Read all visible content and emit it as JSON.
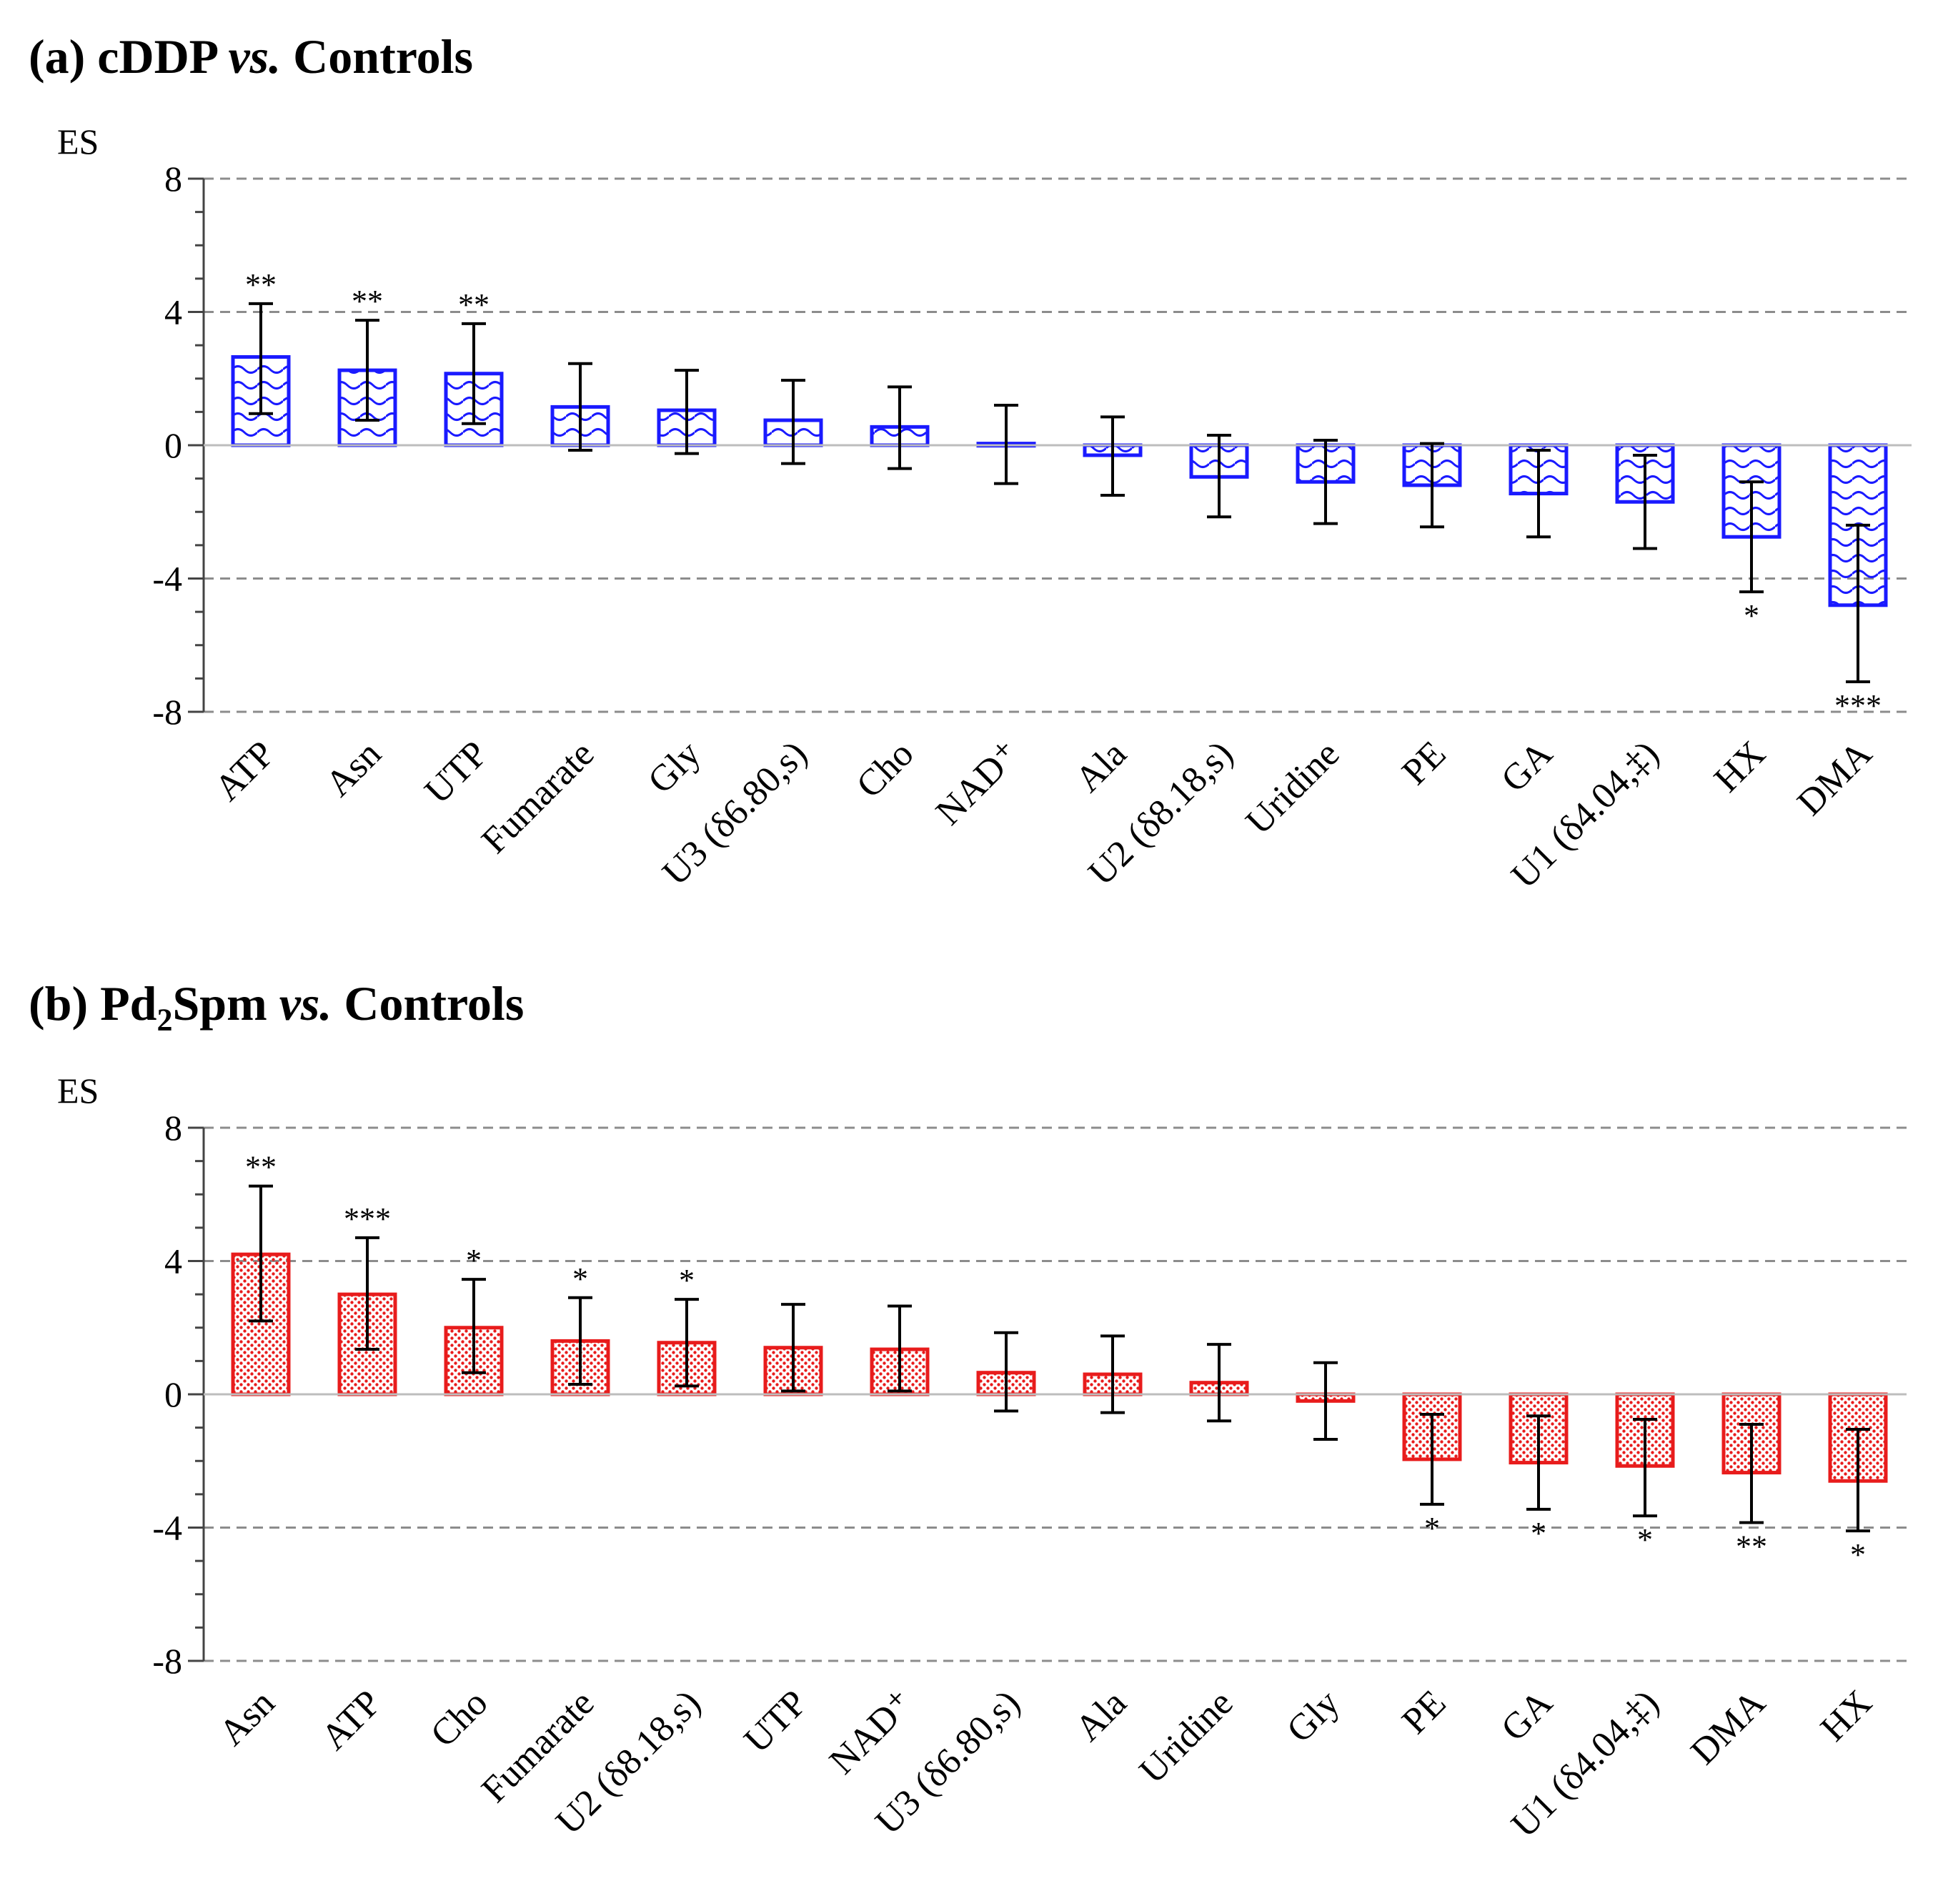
{
  "chart_data": [
    {
      "panel": "a",
      "title_prefix": "(a) cDDP ",
      "title_italic": "vs.",
      "title_suffix": " Controls",
      "type": "bar",
      "ylabel": "ES",
      "ylim": [
        -8,
        8
      ],
      "yticks": [
        8,
        4,
        0,
        -4,
        -8
      ],
      "grid": true,
      "color": "#1a1aff",
      "pattern": "wave",
      "categories": [
        "ATP",
        "Asn",
        "UTP",
        "Fumarate",
        "Gly",
        "U3 (δ6.80,s)",
        "Cho",
        "NAD⁺",
        "Ala",
        "U2 (δ8.18,s)",
        "Uridine",
        "PE",
        "GA",
        "U1 (δ4.04,‡)",
        "HX",
        "DMA"
      ],
      "values": [
        2.65,
        2.25,
        2.15,
        1.15,
        1.05,
        0.75,
        0.55,
        0.05,
        -0.3,
        -0.95,
        -1.1,
        -1.2,
        -1.45,
        -1.7,
        -2.75,
        -4.8
      ],
      "error_low": [
        0.95,
        0.75,
        0.65,
        -0.15,
        -0.25,
        -0.55,
        -0.7,
        -1.15,
        -1.5,
        -2.15,
        -2.35,
        -2.45,
        -2.75,
        -3.1,
        -4.4,
        -7.1
      ],
      "error_high": [
        4.25,
        3.75,
        3.65,
        2.45,
        2.25,
        1.95,
        1.75,
        1.2,
        0.85,
        0.3,
        0.15,
        0.05,
        -0.15,
        -0.3,
        -1.1,
        -2.4
      ],
      "significance": [
        "**",
        "**",
        "**",
        "",
        "",
        "",
        "",
        "",
        "",
        "",
        "",
        "",
        "",
        "",
        "*",
        "***"
      ]
    },
    {
      "panel": "b",
      "title_prefix": "(b) Pd",
      "title_sub": "2",
      "title_mid": "Spm ",
      "title_italic": "vs.",
      "title_suffix": " Controls",
      "type": "bar",
      "ylabel": "ES",
      "ylim": [
        -8,
        8
      ],
      "yticks": [
        8,
        4,
        0,
        -4,
        -8
      ],
      "grid": true,
      "color": "#e81c1c",
      "pattern": "dots",
      "categories": [
        "Asn",
        "ATP",
        "Cho",
        "Fumarate",
        "U2 (δ8.18,s)",
        "UTP",
        "NAD⁺",
        "U3 (δ6.80,s)",
        "Ala",
        "Uridine",
        "Gly",
        "PE",
        "GA",
        "U1 (δ4.04,‡)",
        "DMA",
        "HX"
      ],
      "values": [
        4.2,
        3.0,
        2.0,
        1.6,
        1.55,
        1.4,
        1.35,
        0.65,
        0.6,
        0.35,
        -0.2,
        -1.95,
        -2.05,
        -2.15,
        -2.35,
        -2.6
      ],
      "error_low": [
        2.2,
        1.35,
        0.65,
        0.3,
        0.25,
        0.1,
        0.1,
        -0.5,
        -0.55,
        -0.8,
        -1.35,
        -3.3,
        -3.45,
        -3.65,
        -3.85,
        -4.1
      ],
      "error_high": [
        6.25,
        4.7,
        3.45,
        2.9,
        2.85,
        2.7,
        2.65,
        1.85,
        1.75,
        1.5,
        0.95,
        -0.6,
        -0.65,
        -0.75,
        -0.9,
        -1.05
      ],
      "significance": [
        "**",
        "***",
        "*",
        "*",
        "*",
        "",
        "",
        "",
        "",
        "",
        "",
        "*",
        "*",
        "*",
        "**",
        "*"
      ]
    }
  ]
}
